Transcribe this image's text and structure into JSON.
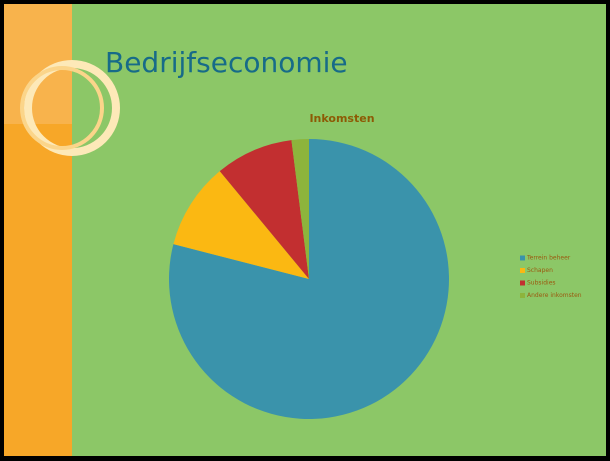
{
  "slide_title": "Bedrijfseconomie",
  "chart_data": {
    "type": "pie",
    "title": "Inkomsten",
    "categories": [
      "Terrein beheer",
      "Schapen",
      "Subsidies",
      "Andere inkomsten"
    ],
    "values": [
      79,
      10,
      9,
      2
    ],
    "colors": [
      "#3a93ab",
      "#fbb812",
      "#c22f30",
      "#8db43c"
    ],
    "legend": "right"
  }
}
